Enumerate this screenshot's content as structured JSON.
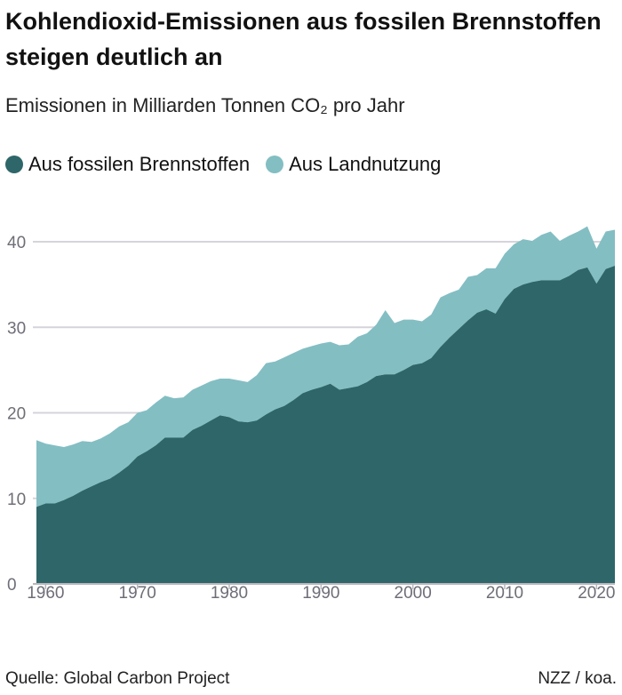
{
  "title": "Kohlendioxid-Emissionen aus fossilen Brennstoffen steigen deutlich an",
  "subtitle": "Emissionen in Milliarden Tonnen CO₂ pro Jahr",
  "source": "Quelle: Global Carbon Project",
  "credit": "NZZ / koa.",
  "colors": {
    "fossil": "#2e6669",
    "land": "#83bec3",
    "grid": "#d6d4da",
    "tick_text": "#6e6e78"
  },
  "chart_data": {
    "type": "area",
    "stacked": true,
    "title": "Kohlendioxid-Emissionen aus fossilen Brennstoffen steigen deutlich an",
    "subtitle": "Emissionen in Milliarden Tonnen CO₂ pro Jahr",
    "legend_placement": "top-left",
    "grid": true,
    "xlim": [
      1959,
      2022
    ],
    "ylim": [
      0,
      40
    ],
    "xticks": [
      "1960",
      "1970",
      "1980",
      "1990",
      "2000",
      "2010",
      "2020"
    ],
    "yticks": [
      "0",
      "10",
      "20",
      "30",
      "40"
    ],
    "x": [
      1959,
      1960,
      1961,
      1962,
      1963,
      1964,
      1965,
      1966,
      1967,
      1968,
      1969,
      1970,
      1971,
      1972,
      1973,
      1974,
      1975,
      1976,
      1977,
      1978,
      1979,
      1980,
      1981,
      1982,
      1983,
      1984,
      1985,
      1986,
      1987,
      1988,
      1989,
      1990,
      1991,
      1992,
      1993,
      1994,
      1995,
      1996,
      1997,
      1998,
      1999,
      2000,
      2001,
      2002,
      2003,
      2004,
      2005,
      2006,
      2007,
      2008,
      2009,
      2010,
      2011,
      2012,
      2013,
      2014,
      2015,
      2016,
      2017,
      2018,
      2019,
      2020,
      2021,
      2022
    ],
    "series": [
      {
        "name": "Aus fossilen Brennstoffen",
        "values": [
          9.0,
          9.4,
          9.4,
          9.8,
          10.3,
          10.9,
          11.4,
          11.9,
          12.3,
          13.0,
          13.8,
          14.9,
          15.5,
          16.2,
          17.1,
          17.1,
          17.1,
          18.0,
          18.5,
          19.1,
          19.7,
          19.5,
          19.0,
          18.9,
          19.1,
          19.8,
          20.4,
          20.8,
          21.5,
          22.3,
          22.7,
          23.0,
          23.4,
          22.7,
          22.9,
          23.1,
          23.6,
          24.3,
          24.5,
          24.5,
          25.0,
          25.6,
          25.8,
          26.4,
          27.7,
          28.8,
          29.8,
          30.8,
          31.7,
          32.1,
          31.6,
          33.3,
          34.5,
          35.0,
          35.3,
          35.5,
          35.5,
          35.5,
          36.0,
          36.7,
          37.0,
          35.1,
          36.8,
          37.2
        ]
      },
      {
        "name": "Aus Landnutzung",
        "values": [
          7.8,
          7.0,
          6.8,
          6.2,
          6.0,
          5.8,
          5.2,
          5.1,
          5.3,
          5.4,
          5.1,
          5.1,
          4.8,
          5.0,
          4.9,
          4.6,
          4.7,
          4.7,
          4.7,
          4.6,
          4.3,
          4.5,
          4.8,
          4.7,
          5.3,
          6.0,
          5.6,
          5.7,
          5.5,
          5.2,
          5.1,
          5.1,
          4.9,
          5.2,
          5.1,
          5.8,
          5.7,
          6.0,
          7.5,
          6.0,
          5.9,
          5.3,
          4.9,
          5.1,
          5.8,
          5.2,
          4.6,
          5.1,
          4.4,
          4.8,
          5.3,
          5.3,
          5.2,
          5.3,
          4.8,
          5.3,
          5.7,
          4.6,
          4.7,
          4.5,
          4.8,
          4.1,
          4.4,
          4.2
        ]
      }
    ]
  }
}
